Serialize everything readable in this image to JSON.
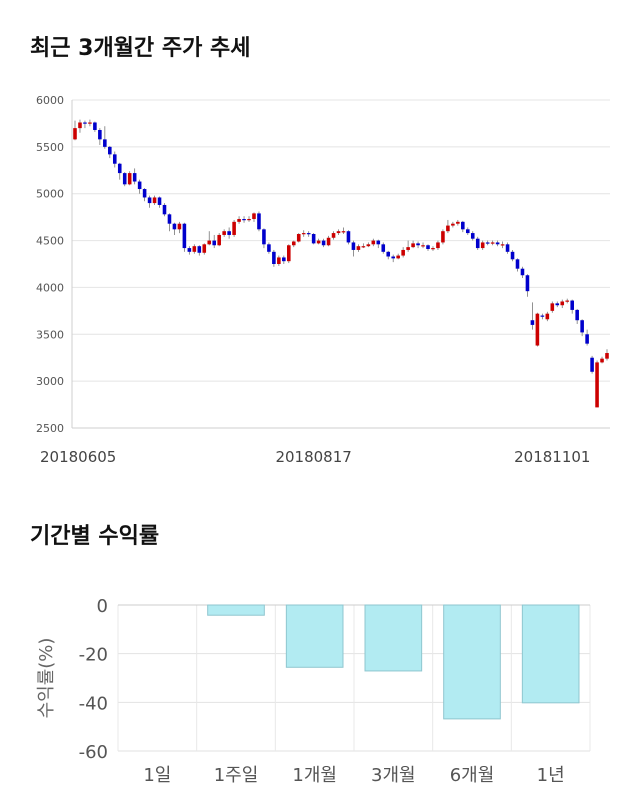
{
  "sections": {
    "price_title": "최근 3개월간 주가 추세",
    "return_title": "기간별 수익률"
  },
  "chart_data": [
    {
      "type": "candlestick",
      "title": "최근 3개월간 주가 추세",
      "ylim": [
        2500,
        6000
      ],
      "y_ticks": [
        2500,
        3000,
        3500,
        4000,
        4500,
        5000,
        5500,
        6000
      ],
      "x_tick_labels": [
        {
          "index": 0,
          "label": "20180605"
        },
        {
          "index": 48,
          "label": "20180817"
        },
        {
          "index": 96,
          "label": "20181101"
        }
      ],
      "grid": true,
      "up_color": "#cc0000",
      "down_color": "#0000cc",
      "candles": [
        [
          5580,
          5700,
          5780,
          5570
        ],
        [
          5700,
          5760,
          5790,
          5650
        ],
        [
          5760,
          5750,
          5780,
          5700
        ],
        [
          5750,
          5760,
          5790,
          5720
        ],
        [
          5760,
          5680,
          5770,
          5660
        ],
        [
          5680,
          5580,
          5700,
          5520
        ],
        [
          5580,
          5500,
          5720,
          5480
        ],
        [
          5500,
          5420,
          5510,
          5380
        ],
        [
          5420,
          5320,
          5450,
          5280
        ],
        [
          5320,
          5220,
          5330,
          5150
        ],
        [
          5220,
          5100,
          5230,
          5080
        ],
        [
          5100,
          5220,
          5240,
          5090
        ],
        [
          5220,
          5130,
          5270,
          5100
        ],
        [
          5130,
          5050,
          5150,
          5000
        ],
        [
          5050,
          4960,
          5060,
          4920
        ],
        [
          4960,
          4900,
          4980,
          4850
        ],
        [
          4900,
          4960,
          4980,
          4880
        ],
        [
          4960,
          4880,
          4970,
          4850
        ],
        [
          4880,
          4780,
          4900,
          4760
        ],
        [
          4780,
          4680,
          4790,
          4600
        ],
        [
          4680,
          4620,
          4690,
          4560
        ],
        [
          4620,
          4680,
          4700,
          4580
        ],
        [
          4680,
          4420,
          4690,
          4380
        ],
        [
          4420,
          4380,
          4440,
          4350
        ],
        [
          4380,
          4440,
          4460,
          4360
        ],
        [
          4440,
          4370,
          4450,
          4340
        ],
        [
          4370,
          4460,
          4470,
          4350
        ],
        [
          4460,
          4500,
          4600,
          4450
        ],
        [
          4500,
          4450,
          4560,
          4420
        ],
        [
          4450,
          4560,
          4580,
          4440
        ],
        [
          4560,
          4600,
          4620,
          4540
        ],
        [
          4600,
          4560,
          4640,
          4520
        ],
        [
          4560,
          4700,
          4720,
          4540
        ],
        [
          4700,
          4730,
          4760,
          4680
        ],
        [
          4730,
          4720,
          4760,
          4690
        ],
        [
          4720,
          4730,
          4760,
          4700
        ],
        [
          4730,
          4790,
          4800,
          4700
        ],
        [
          4790,
          4620,
          4810,
          4600
        ],
        [
          4620,
          4460,
          4630,
          4420
        ],
        [
          4460,
          4380,
          4480,
          4360
        ],
        [
          4380,
          4250,
          4400,
          4220
        ],
        [
          4250,
          4320,
          4340,
          4230
        ],
        [
          4320,
          4280,
          4340,
          4250
        ],
        [
          4280,
          4450,
          4460,
          4260
        ],
        [
          4450,
          4490,
          4500,
          4430
        ],
        [
          4490,
          4570,
          4580,
          4480
        ],
        [
          4570,
          4580,
          4610,
          4540
        ],
        [
          4580,
          4570,
          4600,
          4540
        ],
        [
          4570,
          4470,
          4580,
          4460
        ],
        [
          4470,
          4500,
          4520,
          4460
        ],
        [
          4500,
          4450,
          4520,
          4430
        ],
        [
          4450,
          4530,
          4550,
          4440
        ],
        [
          4530,
          4580,
          4600,
          4510
        ],
        [
          4580,
          4600,
          4620,
          4560
        ],
        [
          4600,
          4600,
          4640,
          4570
        ],
        [
          4600,
          4480,
          4610,
          4460
        ],
        [
          4480,
          4400,
          4500,
          4330
        ],
        [
          4400,
          4440,
          4460,
          4380
        ],
        [
          4440,
          4440,
          4470,
          4420
        ],
        [
          4440,
          4460,
          4480,
          4430
        ],
        [
          4460,
          4500,
          4520,
          4440
        ],
        [
          4500,
          4460,
          4510,
          4420
        ],
        [
          4460,
          4380,
          4480,
          4360
        ],
        [
          4380,
          4330,
          4390,
          4300
        ],
        [
          4330,
          4310,
          4350,
          4270
        ],
        [
          4310,
          4340,
          4360,
          4300
        ],
        [
          4340,
          4400,
          4430,
          4320
        ],
        [
          4400,
          4430,
          4500,
          4380
        ],
        [
          4430,
          4470,
          4500,
          4420
        ],
        [
          4470,
          4450,
          4490,
          4420
        ],
        [
          4450,
          4450,
          4480,
          4420
        ],
        [
          4450,
          4410,
          4460,
          4390
        ],
        [
          4410,
          4420,
          4440,
          4390
        ],
        [
          4420,
          4480,
          4500,
          4400
        ],
        [
          4480,
          4600,
          4620,
          4460
        ],
        [
          4600,
          4660,
          4720,
          4580
        ],
        [
          4660,
          4680,
          4700,
          4640
        ],
        [
          4680,
          4700,
          4720,
          4660
        ],
        [
          4700,
          4620,
          4710,
          4590
        ],
        [
          4620,
          4580,
          4640,
          4560
        ],
        [
          4580,
          4520,
          4600,
          4500
        ],
        [
          4520,
          4420,
          4540,
          4400
        ],
        [
          4420,
          4480,
          4500,
          4400
        ],
        [
          4480,
          4470,
          4500,
          4450
        ],
        [
          4470,
          4480,
          4500,
          4450
        ],
        [
          4480,
          4460,
          4500,
          4440
        ],
        [
          4460,
          4460,
          4490,
          4420
        ],
        [
          4460,
          4380,
          4480,
          4360
        ],
        [
          4380,
          4300,
          4400,
          4280
        ],
        [
          4300,
          4200,
          4310,
          4170
        ],
        [
          4200,
          4130,
          4220,
          4100
        ],
        [
          4130,
          3960,
          4140,
          3900
        ],
        [
          3650,
          3600,
          3840,
          3550
        ],
        [
          3380,
          3720,
          3730,
          3370
        ],
        [
          3700,
          3690,
          3720,
          3660
        ],
        [
          3660,
          3720,
          3740,
          3640
        ],
        [
          3750,
          3830,
          3850,
          3730
        ],
        [
          3830,
          3810,
          3850,
          3790
        ],
        [
          3810,
          3850,
          3870,
          3780
        ],
        [
          3850,
          3860,
          3880,
          3830
        ],
        [
          3860,
          3760,
          3870,
          3720
        ],
        [
          3760,
          3650,
          3770,
          3610
        ],
        [
          3650,
          3520,
          3660,
          3480
        ],
        [
          3500,
          3400,
          3550,
          3380
        ],
        [
          3250,
          3100,
          3270,
          3080
        ],
        [
          2720,
          3200,
          3220,
          2720
        ],
        [
          3200,
          3240,
          3260,
          3190
        ],
        [
          3240,
          3300,
          3340,
          3220
        ]
      ]
    },
    {
      "type": "bar",
      "categories": [
        "1일",
        "1주일",
        "1개월",
        "3개월",
        "6개월",
        "1년"
      ],
      "values": [
        0,
        -4.2,
        -25.6,
        -27.1,
        -46.8,
        -40.2
      ],
      "ylabel": "수익률(%)",
      "ylim": [
        -60,
        0
      ],
      "y_ticks": [
        0,
        -20,
        -40,
        -60
      ],
      "grid": true,
      "bar_color": "#b2ebf2",
      "bar_edge_color": "#8fc6cf"
    }
  ]
}
